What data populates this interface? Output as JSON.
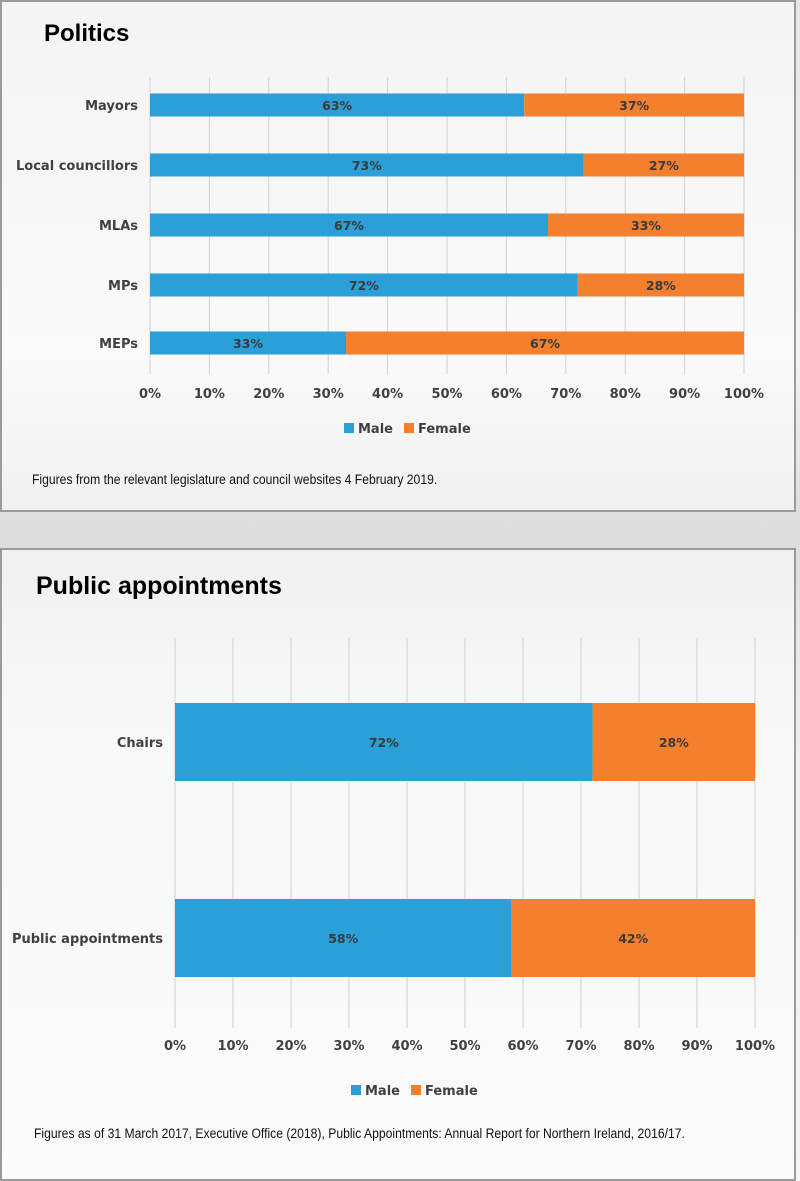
{
  "colors": {
    "male": "#2a9fd8",
    "female": "#f47f2c",
    "grid": "#d0d0d0",
    "text": "#404040"
  },
  "panels": {
    "politics": {
      "title": "Politics",
      "footnote": "Figures from the relevant legislature and council websites 4 February 2019."
    },
    "public": {
      "title": "Public appointments",
      "footnote": "Figures as of 31 March 2017, Executive Office (2018), Public Appointments: Annual Report for Northern Ireland, 2016/17."
    }
  },
  "chart_data": [
    {
      "type": "bar",
      "orientation": "horizontal",
      "stacked": true,
      "title": "Politics",
      "categories": [
        "Mayors",
        "Local councillors",
        "MLAs",
        "MPs",
        "MEPs"
      ],
      "series": [
        {
          "name": "Male",
          "values": [
            63,
            73,
            67,
            72,
            33
          ],
          "labels": [
            "63%",
            "73%",
            "67%",
            "72%",
            "33%"
          ]
        },
        {
          "name": "Female",
          "values": [
            37,
            27,
            33,
            28,
            67
          ],
          "labels": [
            "37%",
            "27%",
            "33%",
            "28%",
            "67%"
          ]
        }
      ],
      "xlim": [
        0,
        100
      ],
      "xticks": [
        "0%",
        "10%",
        "20%",
        "30%",
        "40%",
        "50%",
        "60%",
        "70%",
        "80%",
        "90%",
        "100%"
      ],
      "legend": "bottom",
      "grid": true
    },
    {
      "type": "bar",
      "orientation": "horizontal",
      "stacked": true,
      "title": "Public appointments",
      "categories": [
        "Chairs",
        "Public appointments"
      ],
      "series": [
        {
          "name": "Male",
          "values": [
            72,
            58
          ],
          "labels": [
            "72%",
            "58%"
          ]
        },
        {
          "name": "Female",
          "values": [
            28,
            42
          ],
          "labels": [
            "28%",
            "42%"
          ]
        }
      ],
      "xlim": [
        0,
        100
      ],
      "xticks": [
        "0%",
        "10%",
        "20%",
        "30%",
        "40%",
        "50%",
        "60%",
        "70%",
        "80%",
        "90%",
        "100%"
      ],
      "legend": "bottom",
      "grid": true
    }
  ]
}
